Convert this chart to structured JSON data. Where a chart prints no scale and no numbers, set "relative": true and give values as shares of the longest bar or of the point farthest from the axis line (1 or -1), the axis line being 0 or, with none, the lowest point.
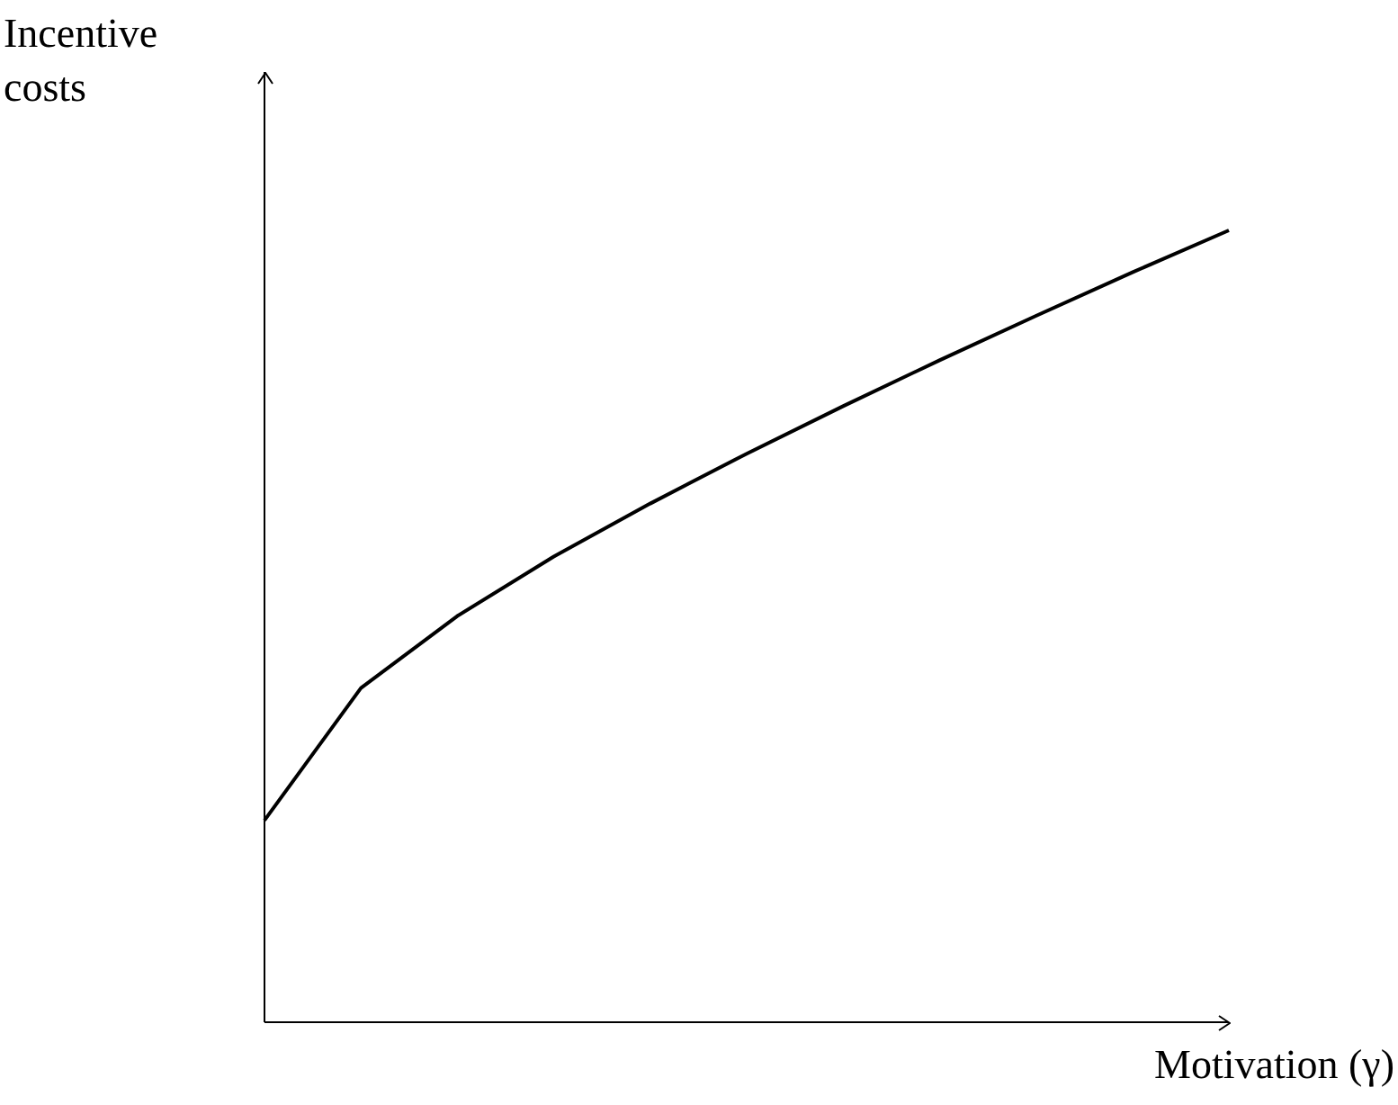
{
  "chart_data": {
    "type": "line",
    "xlabel": "Motivation (γ)",
    "ylabel": "Incentive costs",
    "relative": true,
    "marker": "none",
    "line_style": "solid",
    "categories": [
      null,
      null,
      null,
      null,
      null,
      null,
      null,
      null,
      null,
      null,
      null
    ],
    "series": [
      {
        "color": "#000000",
        "values": [
          0.255,
          0.422,
          0.513,
          0.588,
          0.655,
          0.718,
          0.778,
          0.836,
          0.892,
          0.947,
          1
        ]
      }
    ]
  }
}
